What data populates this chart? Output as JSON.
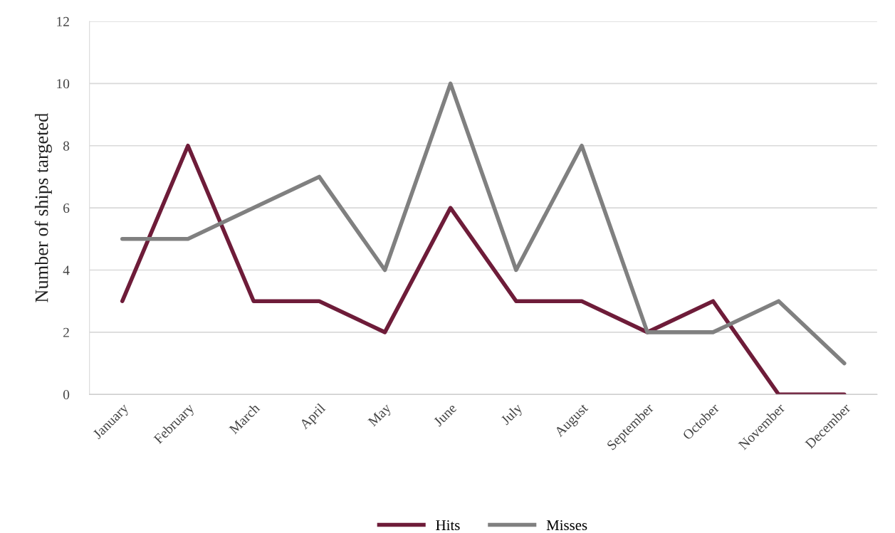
{
  "chart_data": {
    "type": "line",
    "ylabel": "Number of ships targeted",
    "categories": [
      "January",
      "February",
      "March",
      "April",
      "May",
      "June",
      "July",
      "August",
      "September",
      "October",
      "November",
      "December"
    ],
    "series": [
      {
        "name": "Hits",
        "color": "#6e1c39",
        "values": [
          3,
          8,
          3,
          3,
          2,
          6,
          3,
          3,
          2,
          3,
          0,
          0
        ]
      },
      {
        "name": "Misses",
        "color": "#808080",
        "values": [
          5,
          5,
          6,
          7,
          4,
          10,
          4,
          8,
          2,
          2,
          3,
          1
        ]
      }
    ],
    "ylim": [
      0,
      12
    ],
    "yticks": [
      0,
      2,
      4,
      6,
      8,
      10,
      12
    ],
    "grid": "y",
    "legend": "bottom",
    "marker": "none",
    "line_style": "solid"
  }
}
